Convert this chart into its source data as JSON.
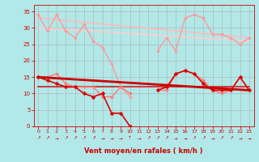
{
  "xlabel": "Vent moyen/en rafales ( km/h )",
  "background_color": "#b2e8e8",
  "grid_color": "#b0b0b0",
  "xlim": [
    -0.5,
    23.5
  ],
  "ylim": [
    0,
    37
  ],
  "yticks": [
    0,
    5,
    10,
    15,
    20,
    25,
    30,
    35
  ],
  "xticks": [
    0,
    1,
    2,
    3,
    4,
    5,
    6,
    7,
    8,
    9,
    10,
    11,
    12,
    13,
    14,
    15,
    16,
    17,
    18,
    19,
    20,
    21,
    22,
    23
  ],
  "line_light_rafales": {
    "x": [
      0,
      1,
      2,
      3,
      4,
      5,
      6,
      7,
      8,
      9,
      10,
      11,
      12,
      13,
      14,
      15,
      16,
      17,
      18,
      19,
      20,
      21,
      22,
      23
    ],
    "y": [
      34,
      29,
      34,
      29,
      27,
      31,
      26,
      24,
      19,
      12,
      9,
      null,
      null,
      23,
      27,
      23,
      33,
      34,
      33,
      28,
      28,
      27,
      25,
      27
    ],
    "color": "#ff9999",
    "lw": 1.0,
    "marker": "D",
    "ms": 2.0
  },
  "line_trend_high_1": {
    "x": [
      0,
      23
    ],
    "y": [
      33,
      27
    ],
    "color": "#ffbbbb",
    "lw": 1.2
  },
  "line_trend_high_2": {
    "x": [
      0,
      23
    ],
    "y": [
      30,
      26
    ],
    "color": "#ffcccc",
    "lw": 1.2
  },
  "line_light_moyen": {
    "x": [
      0,
      1,
      2,
      3,
      4,
      5,
      6,
      7,
      8,
      9,
      10,
      11,
      12,
      13,
      14,
      15,
      16,
      17,
      18,
      19,
      20,
      21,
      22,
      23
    ],
    "y": [
      15,
      15,
      16,
      13,
      12,
      12,
      12,
      9,
      9,
      12,
      10,
      null,
      null,
      11,
      11,
      16,
      17,
      16,
      14,
      11,
      10,
      11,
      15,
      11
    ],
    "color": "#ff7777",
    "lw": 1.0,
    "marker": "D",
    "ms": 2.0
  },
  "line_trend_low_1": {
    "x": [
      0,
      23
    ],
    "y": [
      15,
      11
    ],
    "color": "#cc0000",
    "lw": 2.0
  },
  "line_trend_low_2": {
    "x": [
      0,
      23
    ],
    "y": [
      12,
      12
    ],
    "color": "#cc2222",
    "lw": 1.2
  },
  "line_dark_moyen": {
    "x": [
      0,
      1,
      2,
      3,
      4,
      5,
      6,
      7,
      8,
      9,
      10,
      11,
      12,
      13,
      14,
      15,
      16,
      17,
      18,
      19,
      20,
      21,
      22,
      23
    ],
    "y": [
      15,
      14,
      13,
      12,
      12,
      10,
      9,
      10,
      4,
      4,
      0,
      null,
      null,
      11,
      12,
      16,
      17,
      16,
      13,
      11,
      11,
      11,
      15,
      11
    ],
    "color": "#dd0000",
    "lw": 1.2,
    "marker": "D",
    "ms": 2.5
  },
  "wind_directions": [
    "NE",
    "NE",
    "E",
    "NE",
    "NE",
    "NE",
    "NE",
    "E",
    "E",
    "E",
    "N",
    "E",
    "NE",
    "NE",
    "NE",
    "E",
    "E",
    "NE",
    "NE",
    "E",
    "NE",
    "NE",
    "E",
    "E"
  ]
}
